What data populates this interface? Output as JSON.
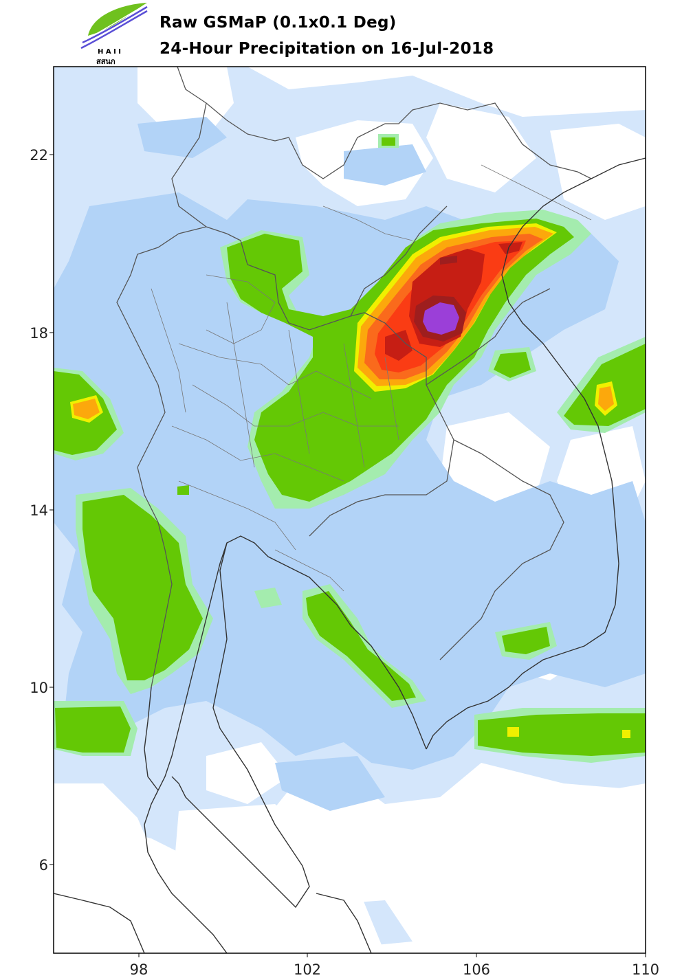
{
  "header": {
    "title_line1": "Raw GSMaP (0.1x0.1 Deg)",
    "title_line2": "24-Hour Precipitation on 16-Jul-2018",
    "logo_text_top": "H A I I",
    "logo_text_bottom": "สสนก"
  },
  "axes": {
    "y_ticks": [
      "22",
      "18",
      "14",
      "10",
      "6"
    ],
    "x_ticks": [
      "98",
      "102",
      "106",
      "110"
    ]
  },
  "colors": {
    "very_light_blue": "#d4e6fb",
    "light_blue": "#b2d3f7",
    "light_green": "#a4ecae",
    "green": "#64c805",
    "yellow": "#f0f000",
    "orange": "#fca80c",
    "red": "#fa3c14",
    "dark_red": "#c61e14",
    "maroon": "#9e1e1e",
    "purple": "#9b3fd8",
    "border": "#555555",
    "coast": "#333333"
  }
}
